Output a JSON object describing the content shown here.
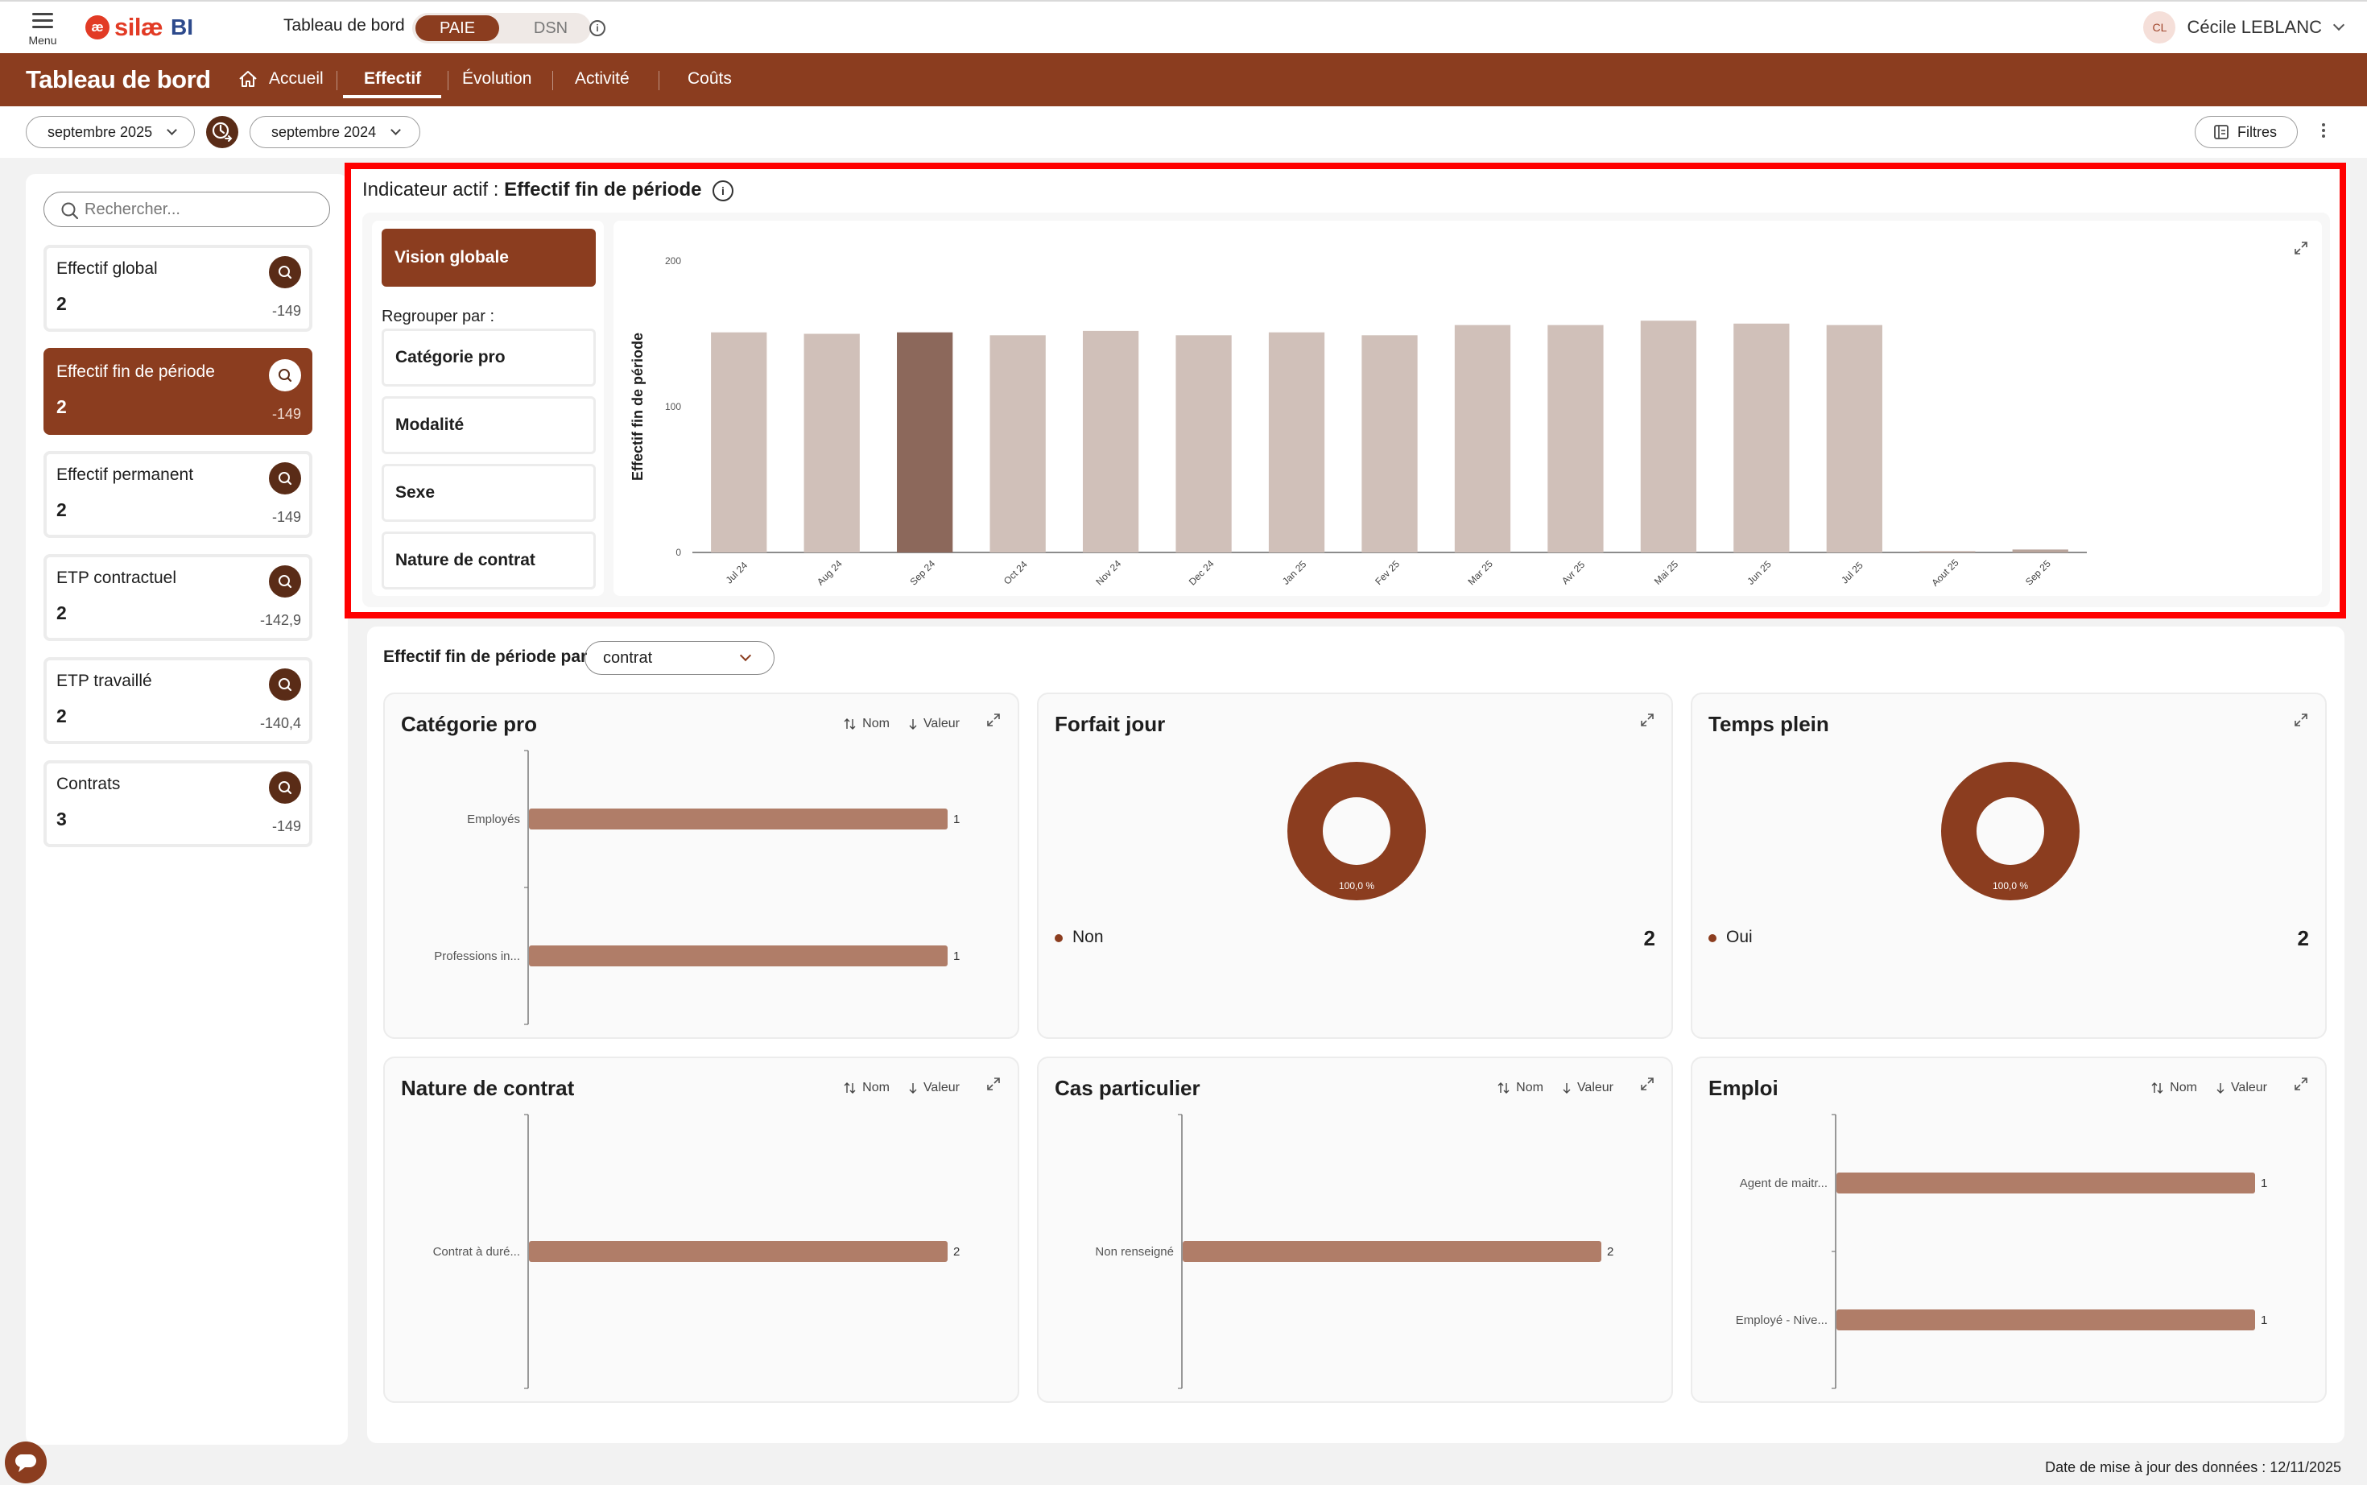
{
  "app": {
    "menu_label": "Menu",
    "logo_mark": "æ",
    "logo_text": "silæ",
    "logo_suffix": "BI",
    "dashboard_label": "Tableau de bord",
    "mode_active": "PAIE",
    "mode_inactive": "DSN"
  },
  "user": {
    "initials": "CL",
    "name": "Cécile LEBLANC"
  },
  "nav": {
    "title": "Tableau de bord",
    "items": [
      "Accueil",
      "Effectif",
      "Évolution",
      "Activité",
      "Coûts"
    ],
    "active": "Effectif"
  },
  "dates": {
    "current": "septembre 2025",
    "compare": "septembre 2024",
    "filters_label": "Filtres"
  },
  "sidebar": {
    "search_placeholder": "Rechercher...",
    "kpis": [
      {
        "name": "Effectif global",
        "value": "2",
        "delta": "-149",
        "active": false
      },
      {
        "name": "Effectif fin de période",
        "value": "2",
        "delta": "-149",
        "active": true
      },
      {
        "name": "Effectif permanent",
        "value": "2",
        "delta": "-149",
        "active": false
      },
      {
        "name": "ETP contractuel",
        "value": "2",
        "delta": "-142,9",
        "active": false
      },
      {
        "name": "ETP travaillé",
        "value": "2",
        "delta": "-140,4",
        "active": false
      },
      {
        "name": "Contrats",
        "value": "3",
        "delta": "-149",
        "active": false
      }
    ]
  },
  "indicator": {
    "prefix": "Indicateur actif :",
    "name": "Effectif fin de période",
    "vision_label": "Vision globale",
    "group_label": "Regrouper par :",
    "group_options": [
      "Catégorie pro",
      "Modalité",
      "Sexe",
      "Nature de contrat"
    ]
  },
  "chart_data": {
    "type": "bar",
    "ylabel": "Effectif fin de période",
    "xlabel": "",
    "ylim": [
      0,
      200
    ],
    "yticks": [
      0,
      100,
      200
    ],
    "categories": [
      "Jul 24",
      "Aug 24",
      "Sep 24",
      "Oct 24",
      "Nov 24",
      "Dec 24",
      "Jan 25",
      "Fev 25",
      "Mar 25",
      "Avr 25",
      "Mai 25",
      "Jun 25",
      "Jul 25",
      "Aout 25",
      "Sep 25"
    ],
    "values": [
      151,
      150,
      151,
      149,
      152,
      149,
      151,
      149,
      156,
      156,
      159,
      157,
      156,
      0,
      2
    ],
    "highlight_index": 2,
    "colors": {
      "bar": "#d0c0b9",
      "highlight": "#8c685b"
    }
  },
  "breakdown": {
    "label": "Effectif fin de période par",
    "selected": "contrat",
    "sort_name": "Nom",
    "sort_value": "Valeur",
    "cards": [
      {
        "title": "Catégorie pro",
        "kind": "bar",
        "rows": [
          {
            "label": "Employés",
            "value": 1
          },
          {
            "label": "Professions in...",
            "value": 1
          }
        ]
      },
      {
        "title": "Forfait jour",
        "kind": "donut",
        "pct": "100,0 %",
        "legend": "Non",
        "count": "2"
      },
      {
        "title": "Temps plein",
        "kind": "donut",
        "pct": "100,0 %",
        "legend": "Oui",
        "count": "2"
      },
      {
        "title": "Nature de contrat",
        "kind": "bar",
        "rows": [
          {
            "label": "Contrat à duré...",
            "value": 2
          }
        ]
      },
      {
        "title": "Cas particulier",
        "kind": "bar",
        "rows": [
          {
            "label": "Non renseigné",
            "value": 2
          }
        ]
      },
      {
        "title": "Emploi",
        "kind": "bar",
        "rows": [
          {
            "label": "Agent de maitr...",
            "value": 1
          },
          {
            "label": "Employé - Nive...",
            "value": 1
          }
        ]
      }
    ]
  },
  "footer": {
    "update_text": "Date de mise à jour des données : 12/11/2025"
  },
  "colors": {
    "brand": "#8b3d1f",
    "brand_dark": "#5a2c17",
    "hbar": "#b07d68",
    "highlight_border": "#ff0000"
  }
}
